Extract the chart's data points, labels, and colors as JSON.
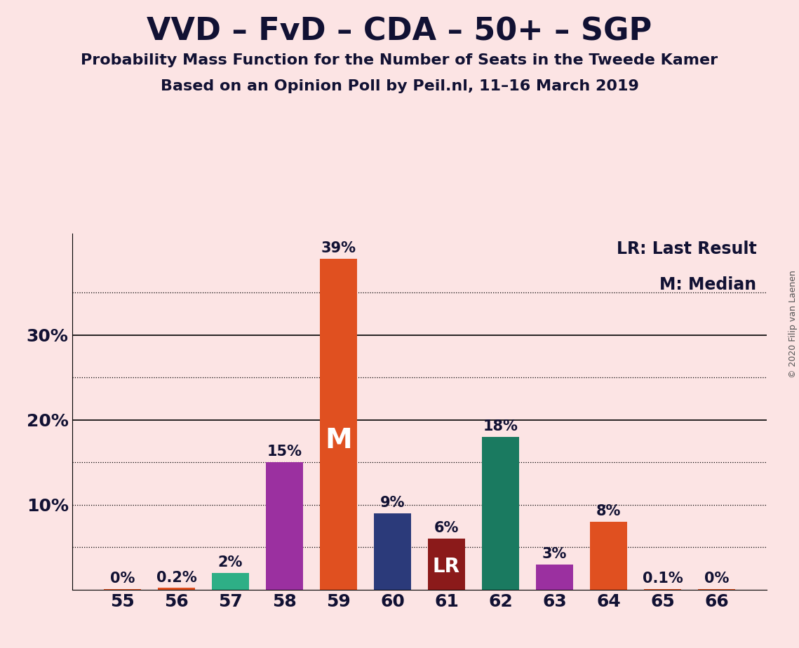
{
  "title": "VVD – FvD – CDA – 50+ – SGP",
  "subtitle1": "Probability Mass Function for the Number of Seats in the Tweede Kamer",
  "subtitle2": "Based on an Opinion Poll by Peil.nl, 11–16 March 2019",
  "copyright": "© 2020 Filip van Laenen",
  "legend_lr": "LR: Last Result",
  "legend_m": "M: Median",
  "background_color": "#fce4e4",
  "categories": [
    55,
    56,
    57,
    58,
    59,
    60,
    61,
    62,
    63,
    64,
    65,
    66
  ],
  "values": [
    0.05,
    0.2,
    2.0,
    15.0,
    39.0,
    9.0,
    6.0,
    18.0,
    3.0,
    8.0,
    0.1,
    0.05
  ],
  "labels": [
    "0%",
    "0.2%",
    "2%",
    "15%",
    "39%",
    "9%",
    "6%",
    "18%",
    "3%",
    "8%",
    "0.1%",
    "0%"
  ],
  "bar_colors": [
    "#e05020",
    "#e05020",
    "#2eaf86",
    "#9b30a0",
    "#e05020",
    "#2b3a7a",
    "#8b1a1a",
    "#1a7a60",
    "#9b30a0",
    "#e05020",
    "#e05020",
    "#e05020"
  ],
  "median_bar_index": 4,
  "lr_bar_index": 6,
  "median_label": "M",
  "lr_label": "LR",
  "major_gridlines": [
    20,
    30
  ],
  "dotted_gridlines": [
    5,
    10,
    15,
    25,
    35
  ],
  "ylim": [
    0,
    42
  ],
  "title_fontsize": 32,
  "subtitle_fontsize": 16,
  "label_fontsize": 15,
  "tick_fontsize": 18,
  "bar_width": 0.7
}
